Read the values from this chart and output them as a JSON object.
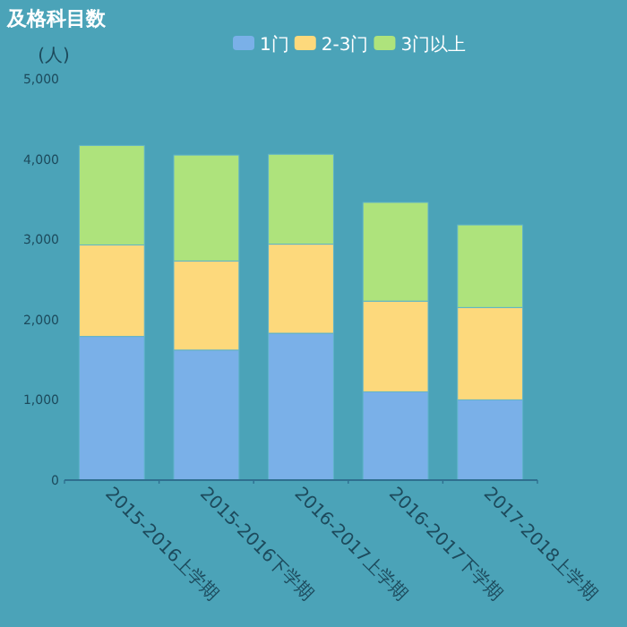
{
  "chart_data": {
    "type": "bar",
    "title": "及格科目数",
    "ylabel": "(人)",
    "stacked": true,
    "legend": "top",
    "grid": false,
    "categories": [
      "2015-2016上学期",
      "2015-2016下学期",
      "2016-2017上学期",
      "2016-2017下学期",
      "2017-2018上学期"
    ],
    "series": [
      {
        "name": "1门",
        "color": "#7ab0e8",
        "values": [
          1790,
          1620,
          1830,
          1100,
          1000
        ]
      },
      {
        "name": "2-3门",
        "color": "#fdd97c",
        "values": [
          1140,
          1110,
          1110,
          1130,
          1150
        ]
      },
      {
        "name": "3门以上",
        "color": "#aee37c",
        "values": [
          1240,
          1320,
          1120,
          1230,
          1030
        ]
      }
    ],
    "ylim": [
      0,
      5000
    ],
    "yticks": [
      0,
      {
        "value": 1000,
        "label": "1,000"
      },
      {
        "value": 2000,
        "label": "2,000"
      },
      {
        "value": 3000,
        "label": "3,000"
      },
      {
        "value": 4000,
        "label": "4,000"
      },
      {
        "value": 5000,
        "label": "5,000"
      }
    ]
  }
}
